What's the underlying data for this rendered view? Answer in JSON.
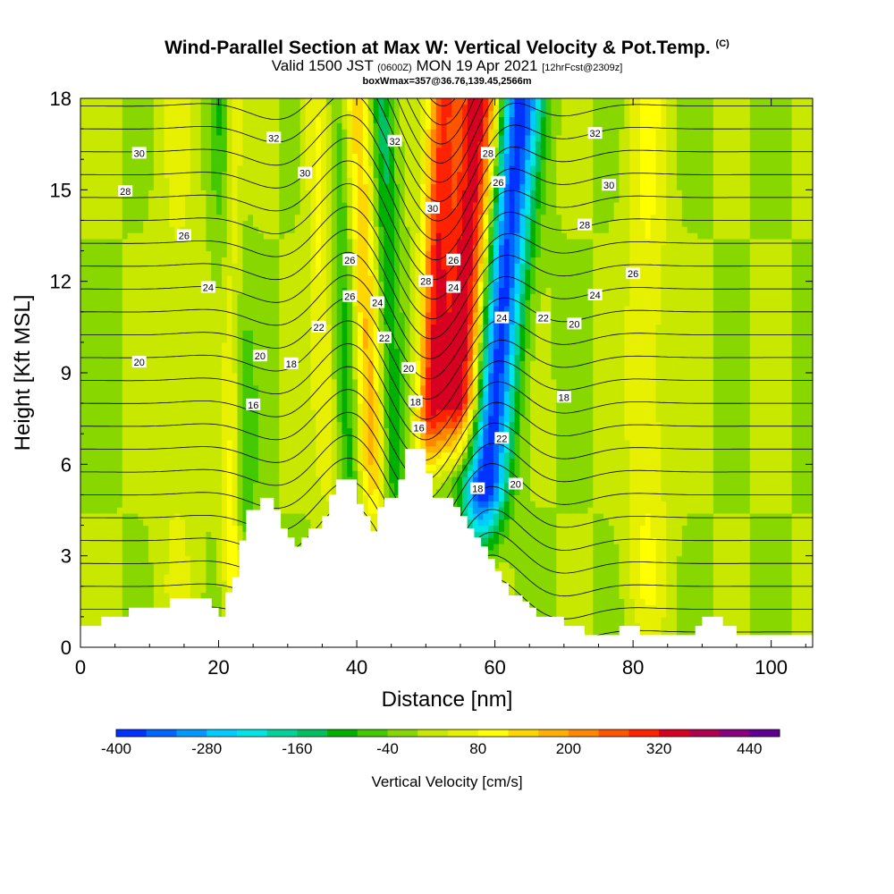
{
  "header": {
    "title": "Wind-Parallel Section at Max W: Vertical Velocity & Pot.Temp.",
    "title_flag": "(C)",
    "valid_prefix": "Valid 1500 JST",
    "valid_utc": "(0600Z)",
    "valid_date": "MON 19 Apr 2021",
    "forecast": "[12hrFcst@2309z]",
    "note": "boxWmax=357@36.76,139.45,2566m"
  },
  "colors": {
    "ramp": [
      "#0033ff",
      "#0066ff",
      "#0099ff",
      "#00ccff",
      "#00e5e5",
      "#00d49a",
      "#00c060",
      "#00b000",
      "#44c800",
      "#88d800",
      "#c8e800",
      "#e6f000",
      "#ffff00",
      "#ffd700",
      "#ffb000",
      "#ff8800",
      "#ff5500",
      "#ff2200",
      "#d80020",
      "#b00050",
      "#880080",
      "#600090"
    ],
    "terrain": "#ffffff",
    "contour": "#000000"
  },
  "chart_data": {
    "type": "heatmap",
    "xlabel": "Distance [nm]",
    "ylabel": "Height [Kft MSL]",
    "xlim": [
      0,
      106
    ],
    "ylim": [
      0,
      18
    ],
    "x_ticks": [
      0,
      20,
      40,
      60,
      80,
      100
    ],
    "y_ticks": [
      0,
      3,
      6,
      9,
      12,
      15,
      18
    ],
    "colorbar": {
      "title": "Vertical Velocity [cm/s]",
      "min": -400,
      "max": 480,
      "step": 40,
      "labels": [
        -400,
        -280,
        -160,
        -40,
        80,
        200,
        320,
        440
      ]
    },
    "terrain_profile": [
      [
        0,
        0.7
      ],
      [
        3,
        0.7
      ],
      [
        3,
        1.0
      ],
      [
        7,
        1.0
      ],
      [
        7,
        1.3
      ],
      [
        13,
        1.3
      ],
      [
        13,
        1.6
      ],
      [
        19,
        1.6
      ],
      [
        19,
        1.3
      ],
      [
        20,
        1.3
      ],
      [
        20,
        1.0
      ],
      [
        21,
        1.0
      ],
      [
        21,
        1.8
      ],
      [
        22,
        1.8
      ],
      [
        22,
        2.3
      ],
      [
        23,
        2.3
      ],
      [
        23,
        3.5
      ],
      [
        24,
        3.5
      ],
      [
        24,
        4.5
      ],
      [
        26,
        4.5
      ],
      [
        26,
        4.9
      ],
      [
        28,
        4.9
      ],
      [
        28,
        4.5
      ],
      [
        29,
        4.5
      ],
      [
        29,
        3.9
      ],
      [
        30,
        3.9
      ],
      [
        30,
        3.6
      ],
      [
        31,
        3.6
      ],
      [
        31,
        3.3
      ],
      [
        32,
        3.3
      ],
      [
        32,
        3.6
      ],
      [
        33,
        3.6
      ],
      [
        33,
        3.9
      ],
      [
        35,
        3.9
      ],
      [
        35,
        4.3
      ],
      [
        36,
        4.3
      ],
      [
        36,
        5.0
      ],
      [
        37,
        5.0
      ],
      [
        37,
        5.5
      ],
      [
        40,
        5.5
      ],
      [
        40,
        4.7
      ],
      [
        41,
        4.7
      ],
      [
        41,
        4.3
      ],
      [
        42,
        4.3
      ],
      [
        42,
        3.8
      ],
      [
        43,
        3.8
      ],
      [
        43,
        4.6
      ],
      [
        44,
        4.6
      ],
      [
        44,
        4.9
      ],
      [
        46,
        4.9
      ],
      [
        46,
        5.5
      ],
      [
        47,
        5.5
      ],
      [
        47,
        6.5
      ],
      [
        50,
        6.5
      ],
      [
        50,
        5.7
      ],
      [
        51,
        5.7
      ],
      [
        51,
        4.9
      ],
      [
        54,
        4.9
      ],
      [
        54,
        4.6
      ],
      [
        55,
        4.6
      ],
      [
        55,
        4.3
      ],
      [
        56,
        4.3
      ],
      [
        56,
        3.9
      ],
      [
        57,
        3.9
      ],
      [
        57,
        3.6
      ],
      [
        58,
        3.6
      ],
      [
        58,
        3.3
      ],
      [
        59,
        3.3
      ],
      [
        59,
        2.9
      ],
      [
        60,
        2.9
      ],
      [
        60,
        2.5
      ],
      [
        61,
        2.5
      ],
      [
        61,
        2.1
      ],
      [
        62,
        2.1
      ],
      [
        62,
        1.7
      ],
      [
        64,
        1.7
      ],
      [
        64,
        1.5
      ],
      [
        65,
        1.5
      ],
      [
        65,
        1.3
      ],
      [
        66,
        1.3
      ],
      [
        66,
        1.0
      ],
      [
        70,
        1.0
      ],
      [
        70,
        0.7
      ],
      [
        73,
        0.7
      ],
      [
        73,
        0.4
      ],
      [
        78,
        0.4
      ],
      [
        78,
        0.7
      ],
      [
        81,
        0.7
      ],
      [
        81,
        0.4
      ],
      [
        89,
        0.4
      ],
      [
        89,
        0.7
      ],
      [
        90,
        0.7
      ],
      [
        90,
        1.0
      ],
      [
        93,
        1.0
      ],
      [
        93,
        0.7
      ],
      [
        95,
        0.7
      ],
      [
        95,
        0.4
      ],
      [
        106,
        0.4
      ]
    ],
    "features": [
      {
        "kind": "updraft",
        "x_bottom": 53,
        "x_top": 57.5,
        "width": 3.6,
        "peak_cm_s": 360,
        "z_start": 7.0
      },
      {
        "kind": "downdraft",
        "x_bottom": 56.5,
        "x_top": 63.5,
        "width": 3.2,
        "peak_cm_s": -400,
        "z_start": 4.0
      },
      {
        "kind": "updraft",
        "x_bottom": 49,
        "x_top": 52.5,
        "width": 2.0,
        "peak_cm_s": 250,
        "z_start": 6.5
      },
      {
        "kind": "updraft",
        "x_bottom": 43,
        "x_top": 40,
        "width": 2.4,
        "peak_cm_s": 170,
        "z_start": 4.5
      },
      {
        "kind": "updraft",
        "x_bottom": 37,
        "x_top": 34,
        "width": 2.0,
        "peak_cm_s": 90,
        "z_start": 5.0
      },
      {
        "kind": "downdraft",
        "x_bottom": 40,
        "x_top": 37.5,
        "width": 2.0,
        "peak_cm_s": -120,
        "z_start": 4.6
      },
      {
        "kind": "downdraft",
        "x_bottom": 46,
        "x_top": 43.5,
        "width": 1.8,
        "peak_cm_s": -130,
        "z_start": 4.6
      },
      {
        "kind": "downdraft",
        "x_bottom": 24,
        "x_top": 21,
        "width": 2.0,
        "peak_cm_s": -120,
        "z_start": 3.5
      },
      {
        "kind": "updraft",
        "x_bottom": 22,
        "x_top": 22,
        "width": 1.5,
        "peak_cm_s": 160,
        "z_start": 2.0
      },
      {
        "kind": "updraft",
        "x_bottom": 82,
        "x_top": 82,
        "width": 3.0,
        "peak_cm_s": 80,
        "z_start": 1.0
      },
      {
        "kind": "updraft",
        "x_bottom": 14,
        "x_top": 14,
        "width": 3.0,
        "peak_cm_s": 40,
        "z_start": 1.0
      }
    ],
    "contour_labels": [
      {
        "value": "30",
        "x": 8.5,
        "y": 16.2
      },
      {
        "value": "28",
        "x": 6.5,
        "y": 14.95
      },
      {
        "value": "26",
        "x": 15.0,
        "y": 13.5
      },
      {
        "value": "24",
        "x": 18.5,
        "y": 11.8
      },
      {
        "value": "20",
        "x": 8.5,
        "y": 9.35
      },
      {
        "value": "32",
        "x": 28.0,
        "y": 16.7
      },
      {
        "value": "30",
        "x": 32.5,
        "y": 15.55
      },
      {
        "value": "26",
        "x": 39.0,
        "y": 12.7
      },
      {
        "value": "26",
        "x": 39.0,
        "y": 11.5
      },
      {
        "value": "22",
        "x": 34.5,
        "y": 10.5
      },
      {
        "value": "20",
        "x": 26.0,
        "y": 9.55
      },
      {
        "value": "18",
        "x": 30.5,
        "y": 9.3
      },
      {
        "value": "16",
        "x": 25.0,
        "y": 7.95
      },
      {
        "value": "32",
        "x": 45.5,
        "y": 16.6
      },
      {
        "value": "24",
        "x": 43.0,
        "y": 11.3
      },
      {
        "value": "22",
        "x": 44.0,
        "y": 10.15
      },
      {
        "value": "20",
        "x": 47.5,
        "y": 9.15
      },
      {
        "value": "18",
        "x": 48.5,
        "y": 8.05
      },
      {
        "value": "16",
        "x": 49.0,
        "y": 7.2
      },
      {
        "value": "30",
        "x": 51.0,
        "y": 14.4
      },
      {
        "value": "28",
        "x": 50.0,
        "y": 12.0
      },
      {
        "value": "26",
        "x": 54.0,
        "y": 12.7
      },
      {
        "value": "24",
        "x": 54.0,
        "y": 11.8
      },
      {
        "value": "28",
        "x": 59.0,
        "y": 16.2
      },
      {
        "value": "26",
        "x": 60.5,
        "y": 15.25
      },
      {
        "value": "24",
        "x": 61.0,
        "y": 10.8
      },
      {
        "value": "22",
        "x": 61.0,
        "y": 6.85
      },
      {
        "value": "20",
        "x": 63.0,
        "y": 5.35
      },
      {
        "value": "18",
        "x": 57.5,
        "y": 5.2
      },
      {
        "value": "22",
        "x": 67.0,
        "y": 10.8
      },
      {
        "value": "20",
        "x": 71.5,
        "y": 10.6
      },
      {
        "value": "18",
        "x": 70.0,
        "y": 8.2
      },
      {
        "value": "32",
        "x": 74.5,
        "y": 16.85
      },
      {
        "value": "30",
        "x": 76.5,
        "y": 15.15
      },
      {
        "value": "28",
        "x": 73.0,
        "y": 13.85
      },
      {
        "value": "26",
        "x": 80.0,
        "y": 12.25
      },
      {
        "value": "24",
        "x": 74.5,
        "y": 11.55
      }
    ]
  }
}
